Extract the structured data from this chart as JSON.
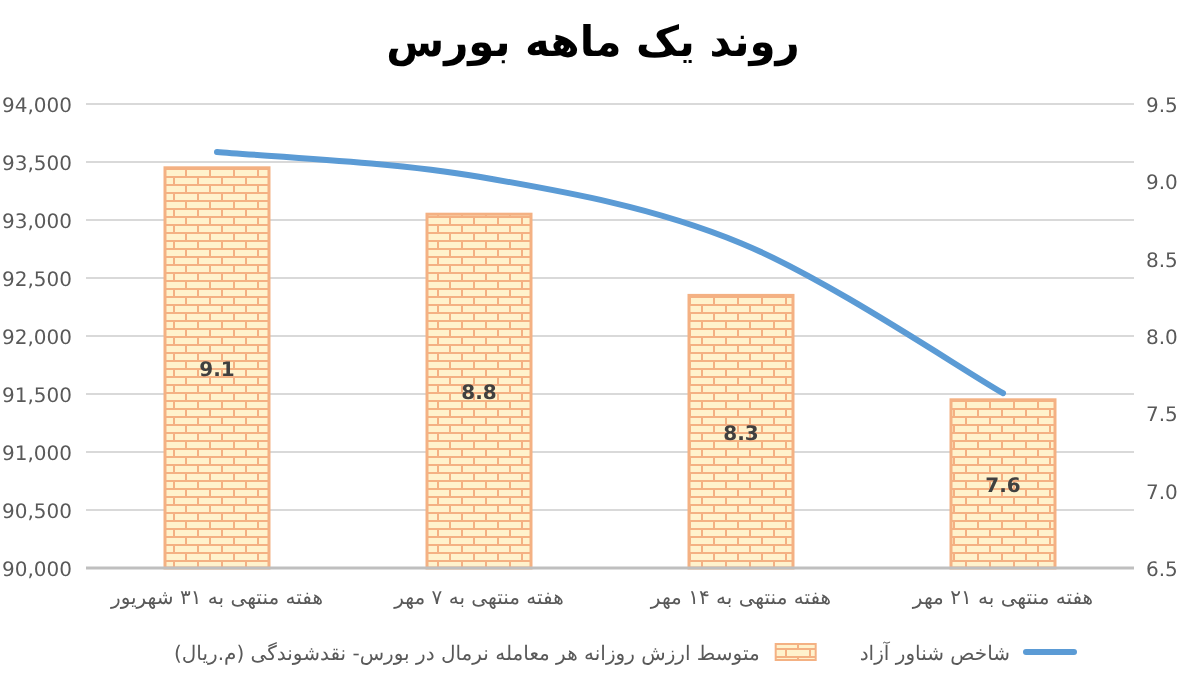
{
  "chart_data": {
    "type": "bar",
    "title": "روند یک ماهه بورس",
    "categories": [
      "هفته منتهی به ۳۱ شهریور",
      "هفته منتهی به ۷ مهر",
      "هفته منتهی به ۱۴ مهر",
      "هفته منتهی به ۲۱ مهر"
    ],
    "series": [
      {
        "name": "متوسط ارزش روزانه هر معامله نرمال در بورس- نقدشوندگی (م.ریال)",
        "color": "#f4b183",
        "values": [
          93450,
          93050,
          92350,
          91450
        ]
      },
      {
        "name": "شاخص شناور آزاد",
        "type": "line",
        "axis": "y2",
        "color": "#5b9bd5",
        "values": [
          9.19,
          9.03,
          8.6,
          7.63
        ]
      }
    ],
    "ylim": [
      90000,
      94000
    ],
    "yticks": [
      {
        "value": 90000,
        "label": "90,000"
      },
      {
        "value": 90500,
        "label": "90,500"
      },
      {
        "value": 91000,
        "label": "91,000"
      },
      {
        "value": 91500,
        "label": "91,500"
      },
      {
        "value": 92000,
        "label": "92,000"
      },
      {
        "value": 92500,
        "label": "92,500"
      },
      {
        "value": 93000,
        "label": "93,000"
      },
      {
        "value": 93500,
        "label": "93,500"
      },
      {
        "value": 94000,
        "label": "94,000"
      }
    ],
    "y2lim": [
      6.5,
      9.5
    ],
    "y2ticks": [
      6.5,
      {
        "value": 7,
        "label": "7.0"
      },
      7.5,
      {
        "value": 8,
        "label": "8.0"
      },
      8.5,
      {
        "value": 9,
        "label": "9.0"
      },
      9.5
    ],
    "annotations": [
      "9.1",
      "8.8",
      "8.3",
      "7.6"
    ],
    "grid": "y",
    "legend": "bottom"
  }
}
